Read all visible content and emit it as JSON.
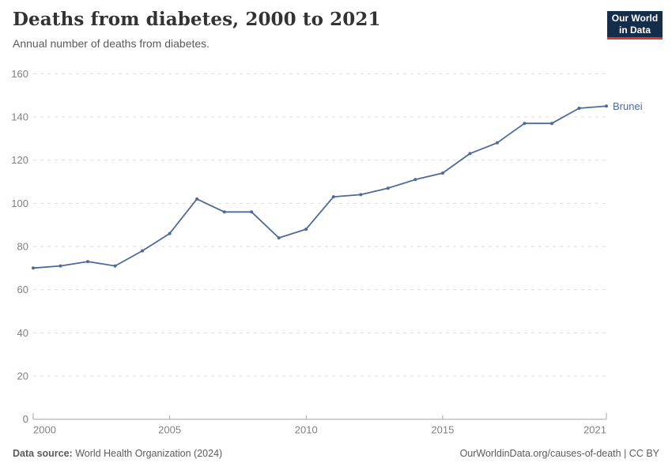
{
  "header": {
    "title": "Deaths from diabetes, 2000 to 2021",
    "subtitle": "Annual number of deaths from diabetes."
  },
  "logo": {
    "line1": "Our World",
    "line2": "in Data"
  },
  "chart_data": {
    "type": "line",
    "title": "Deaths from diabetes, 2000 to 2021",
    "subtitle": "Annual number of deaths from diabetes.",
    "x": [
      2000,
      2001,
      2002,
      2003,
      2004,
      2005,
      2006,
      2007,
      2008,
      2009,
      2010,
      2011,
      2012,
      2013,
      2014,
      2015,
      2016,
      2017,
      2018,
      2019,
      2020,
      2021
    ],
    "series": [
      {
        "name": "Brunei",
        "values": [
          70,
          71,
          73,
          71,
          78,
          86,
          102,
          96,
          96,
          84,
          88,
          103,
          104,
          107,
          111,
          114,
          123,
          128,
          137,
          137,
          144,
          145
        ]
      }
    ],
    "xlabel": "",
    "ylabel": "",
    "ylim": [
      0,
      160
    ],
    "xlim": [
      2000,
      2021
    ],
    "yticks": [
      0,
      20,
      40,
      60,
      80,
      100,
      120,
      140,
      160
    ],
    "xticks": [
      2000,
      2005,
      2010,
      2015,
      2021
    ],
    "grid": "horizontal-dashed",
    "legend": "end-of-line-label"
  },
  "footer": {
    "datasource_label": "Data source:",
    "datasource_value": "World Health Organization (2024)",
    "right_text": "OurWorldinData.org/causes-of-death | CC BY"
  },
  "colors": {
    "line": "#4C6A9C",
    "entity_label": "#4C6A9C",
    "title_text": "#333333",
    "subtitle_text": "#595959",
    "tick_text": "#808080",
    "grid_line": "#dedede",
    "axis_line": "#a6a6a6",
    "footer_text": "#5b5b5b",
    "logo_bg": "#142d4b",
    "logo_red": "#e0362c"
  }
}
